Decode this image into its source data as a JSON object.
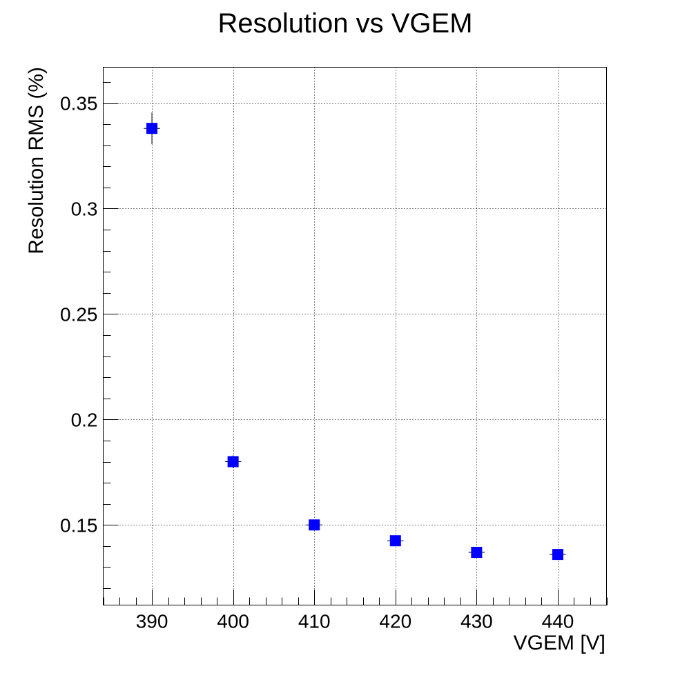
{
  "chart_data": {
    "type": "scatter",
    "title": "Resolution vs VGEM",
    "xlabel": "VGEM [V]",
    "ylabel": "Resolution RMS (%)",
    "xlim": [
      384,
      446
    ],
    "ylim": [
      0.112,
      0.367
    ],
    "x_ticks": [
      390,
      400,
      410,
      420,
      430,
      440
    ],
    "x_tick_labels": [
      "390",
      "400",
      "410",
      "420",
      "430",
      "440"
    ],
    "y_ticks": [
      0.15,
      0.2,
      0.25,
      0.3,
      0.35
    ],
    "y_tick_labels": [
      "0.15",
      "0.2",
      "0.25",
      "0.3",
      "0.35"
    ],
    "grid": true,
    "marker": "square",
    "marker_color": "#0000ff",
    "series": [
      {
        "x": [
          390,
          400,
          410,
          420,
          430,
          440
        ],
        "y": [
          0.338,
          0.18,
          0.15,
          0.1425,
          0.137,
          0.136
        ],
        "x_err": [
          1,
          1,
          1,
          1,
          1,
          1
        ],
        "y_err": [
          0.0075,
          0.003,
          0.0025,
          0.002,
          0.002,
          0.0015
        ]
      }
    ]
  }
}
